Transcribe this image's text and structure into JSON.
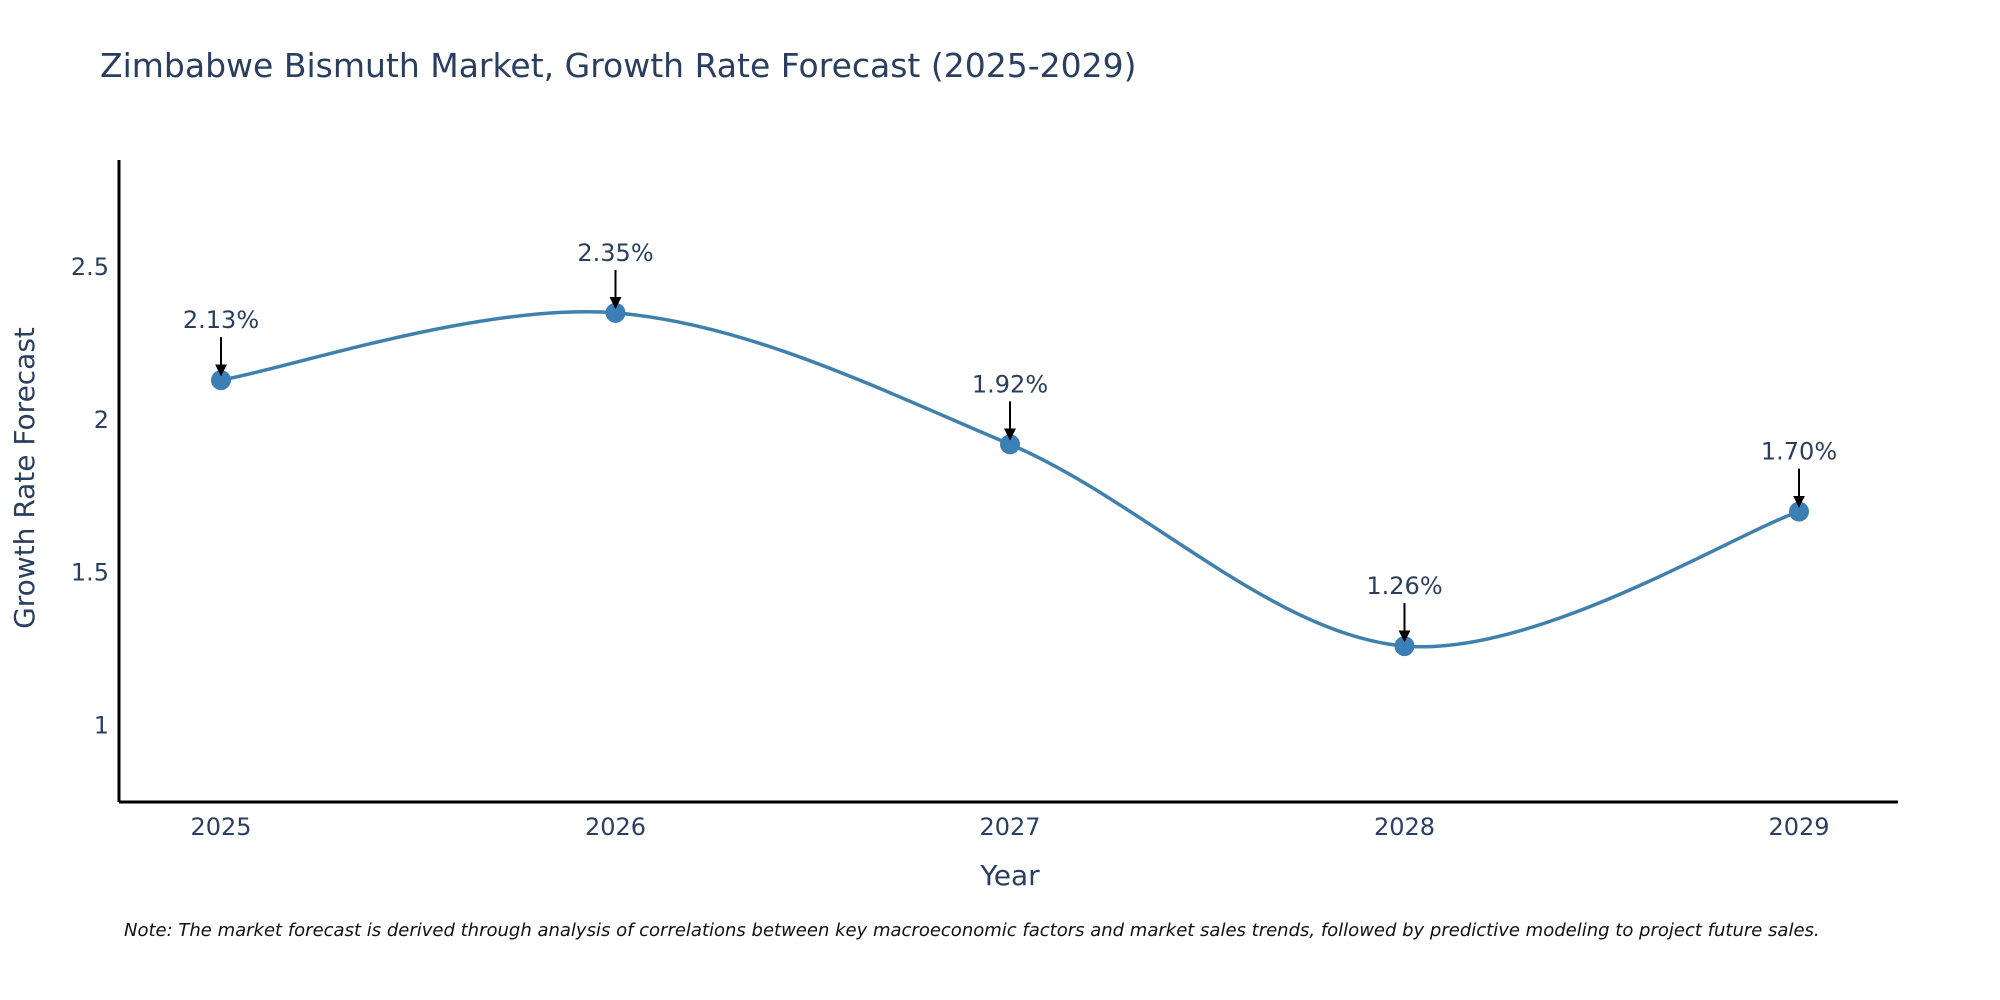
{
  "chart_data": {
    "type": "line",
    "title": "Zimbabwe Bismuth Market, Growth Rate Forecast (2025-2029)",
    "xlabel": "Year",
    "ylabel": "Growth Rate Forecast",
    "categories": [
      "2025",
      "2026",
      "2027",
      "2028",
      "2029"
    ],
    "values": [
      2.13,
      2.35,
      1.92,
      1.26,
      1.7
    ],
    "data_labels": [
      "2.13%",
      "2.35%",
      "1.92%",
      "1.26%",
      "1.70%"
    ],
    "yticks": [
      1,
      1.5,
      2,
      2.5
    ],
    "ytick_labels": [
      "1",
      "1.5",
      "2",
      "2.5"
    ],
    "ylim": [
      0.75,
      2.85
    ],
    "grid": false,
    "line_shape": "spline",
    "note": "Note: The market forecast is derived through analysis of correlations between key macroeconomic factors and market sales trends, followed by predictive modeling to project future sales."
  },
  "colors": {
    "line": "#4080ac",
    "marker": "#3b7fb5",
    "text": "#2a3f5f",
    "axis": "#000000",
    "arrow": "#000000"
  }
}
